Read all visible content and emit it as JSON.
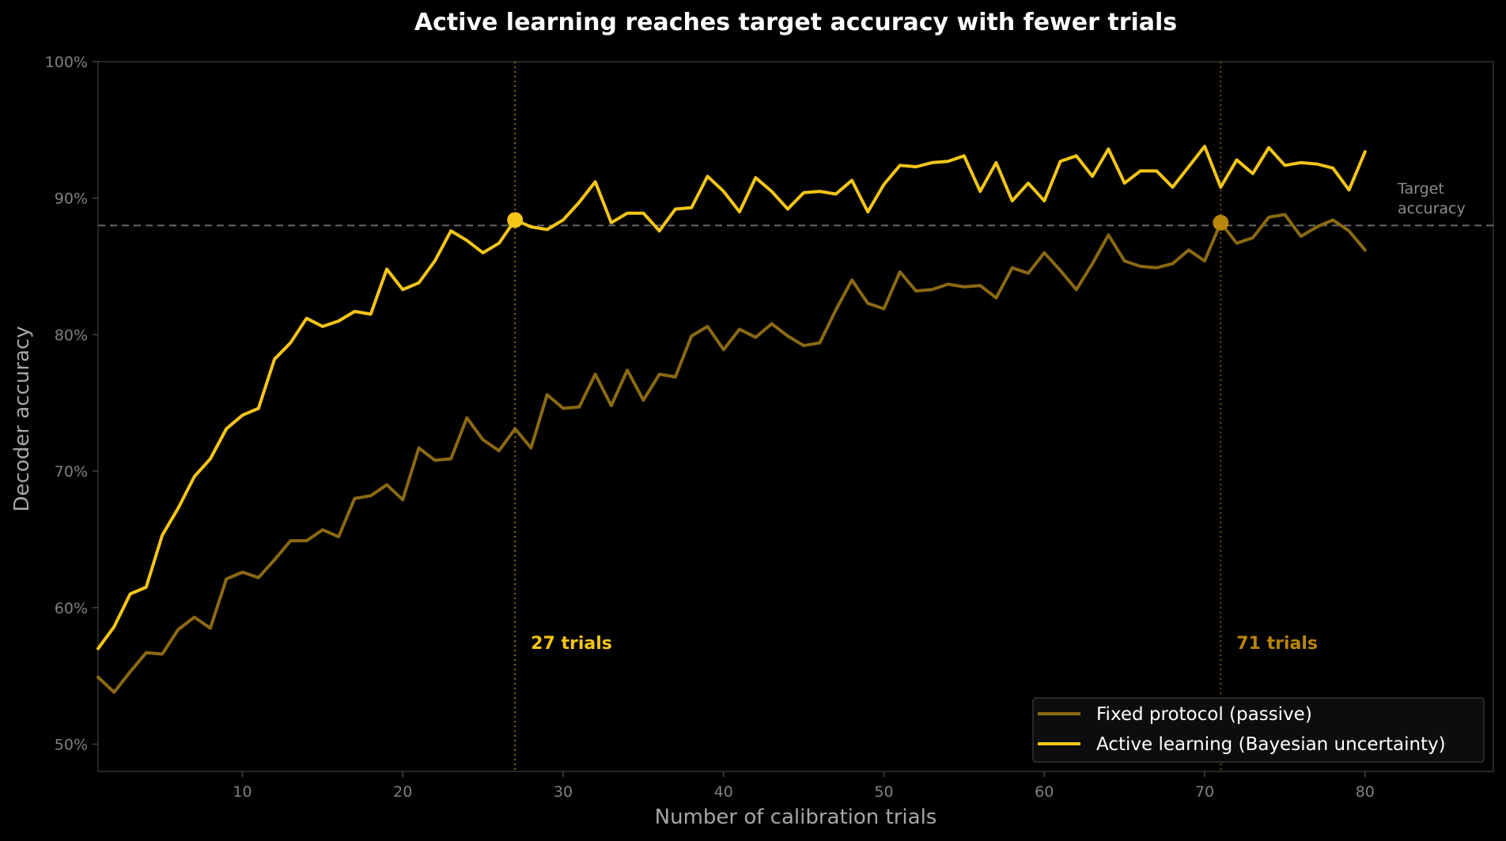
{
  "chart_data": {
    "type": "line",
    "title": "Active learning reaches target accuracy with fewer trials",
    "xlabel": "Number of calibration trials",
    "ylabel": "Decoder accuracy",
    "xlim": [
      1,
      88
    ],
    "ylim": [
      0.48,
      1.0
    ],
    "xticks": [
      10,
      20,
      30,
      40,
      50,
      60,
      70,
      80
    ],
    "yticks": [
      0.5,
      0.6,
      0.7,
      0.8,
      0.9,
      1.0
    ],
    "ytick_labels": [
      "50%",
      "60%",
      "70%",
      "80%",
      "90%",
      "100%"
    ],
    "grid": false,
    "legend_position": "bottom-right",
    "colors": {
      "passive": "#8b6914",
      "active": "#f5c518",
      "target": "#666666",
      "annotation_passive": "#b8860b"
    },
    "target_line": {
      "y": 0.88,
      "label_line1": "Target",
      "label_line2": "accuracy"
    },
    "x": [
      1,
      2,
      3,
      4,
      5,
      6,
      7,
      8,
      9,
      10,
      11,
      12,
      13,
      14,
      15,
      16,
      17,
      18,
      19,
      20,
      21,
      22,
      23,
      24,
      25,
      26,
      27,
      28,
      29,
      30,
      31,
      32,
      33,
      34,
      35,
      36,
      37,
      38,
      39,
      40,
      41,
      42,
      43,
      44,
      45,
      46,
      47,
      48,
      49,
      50,
      51,
      52,
      53,
      54,
      55,
      56,
      57,
      58,
      59,
      60,
      61,
      62,
      63,
      64,
      65,
      66,
      67,
      68,
      69,
      70,
      71,
      72,
      73,
      74,
      75,
      76,
      77,
      78,
      79,
      80
    ],
    "series": [
      {
        "name": "Fixed protocol (passive)",
        "values": [
          0.549,
          0.538,
          0.553,
          0.567,
          0.566,
          0.584,
          0.593,
          0.585,
          0.621,
          0.626,
          0.622,
          0.635,
          0.649,
          0.649,
          0.657,
          0.652,
          0.68,
          0.682,
          0.69,
          0.679,
          0.717,
          0.708,
          0.709,
          0.739,
          0.723,
          0.715,
          0.731,
          0.717,
          0.756,
          0.746,
          0.747,
          0.771,
          0.748,
          0.774,
          0.752,
          0.771,
          0.769,
          0.799,
          0.806,
          0.789,
          0.804,
          0.798,
          0.808,
          0.799,
          0.792,
          0.794,
          0.818,
          0.84,
          0.823,
          0.819,
          0.846,
          0.832,
          0.833,
          0.837,
          0.835,
          0.836,
          0.827,
          0.849,
          0.845,
          0.86,
          0.847,
          0.833,
          0.852,
          0.873,
          0.854,
          0.85,
          0.849,
          0.852,
          0.862,
          0.854,
          0.882,
          0.867,
          0.871,
          0.886,
          0.888,
          0.872,
          0.879,
          0.884,
          0.876,
          0.862
        ]
      },
      {
        "name": "Active learning (Bayesian uncertainty)",
        "values": [
          0.57,
          0.586,
          0.61,
          0.615,
          0.653,
          0.673,
          0.696,
          0.709,
          0.731,
          0.741,
          0.746,
          0.782,
          0.794,
          0.812,
          0.806,
          0.81,
          0.817,
          0.815,
          0.848,
          0.833,
          0.838,
          0.854,
          0.876,
          0.869,
          0.86,
          0.867,
          0.884,
          0.879,
          0.877,
          0.884,
          0.897,
          0.912,
          0.882,
          0.889,
          0.889,
          0.876,
          0.892,
          0.893,
          0.916,
          0.905,
          0.89,
          0.915,
          0.905,
          0.892,
          0.904,
          0.905,
          0.903,
          0.913,
          0.89,
          0.91,
          0.924,
          0.923,
          0.926,
          0.927,
          0.931,
          0.905,
          0.926,
          0.898,
          0.911,
          0.898,
          0.927,
          0.931,
          0.916,
          0.936,
          0.911,
          0.92,
          0.92,
          0.908,
          0.923,
          0.938,
          0.908,
          0.928,
          0.918,
          0.937,
          0.924,
          0.926,
          0.925,
          0.922,
          0.906,
          0.934
        ]
      }
    ],
    "crossings": [
      {
        "series": 1,
        "x": 27,
        "y": 0.884,
        "label": "27 trials",
        "label_y": 0.565
      },
      {
        "series": 0,
        "x": 71,
        "y": 0.882,
        "label": "71 trials",
        "label_y": 0.565
      }
    ]
  }
}
